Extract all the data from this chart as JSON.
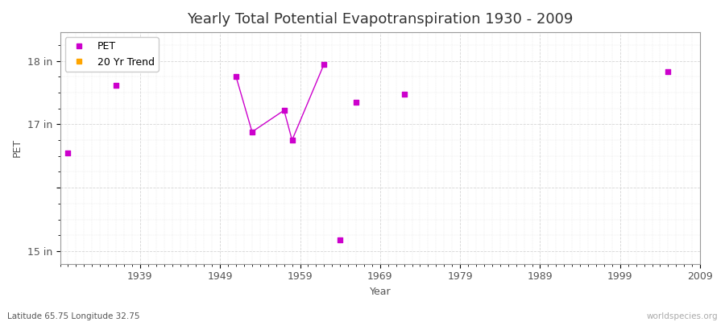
{
  "title": "Yearly Total Potential Evapotranspiration 1930 - 2009",
  "xlabel": "Year",
  "ylabel": "PET",
  "subtitle": "Latitude 65.75 Longitude 32.75",
  "watermark": "worldspecies.org",
  "xmin": 1929,
  "xmax": 2009,
  "ymin": 14.8,
  "ymax": 18.45,
  "yticks": [
    15,
    16,
    17,
    18
  ],
  "ytick_labels": [
    "15 in",
    "",
    "17 in",
    "18 in"
  ],
  "xticks": [
    1939,
    1949,
    1959,
    1969,
    1979,
    1989,
    1999,
    2009
  ],
  "background_color": "#ffffff",
  "fig_color": "#ffffff",
  "grid_color": "#cccccc",
  "line_color": "#cc00cc",
  "pet_color": "#cc00cc",
  "trend_color": "#ffa500",
  "isolated_points": [
    [
      1930,
      16.55
    ],
    [
      1936,
      17.62
    ],
    [
      1966,
      17.35
    ],
    [
      1972,
      17.47
    ],
    [
      2005,
      17.83
    ]
  ],
  "connected_series": [
    [
      1951,
      17.75
    ],
    [
      1953,
      16.88
    ],
    [
      1957,
      17.22
    ],
    [
      1958,
      16.75
    ],
    [
      1962,
      17.95
    ]
  ],
  "outlier": [
    1964,
    15.18
  ],
  "title_fontsize": 13,
  "axis_label_fontsize": 9,
  "tick_fontsize": 9,
  "legend_fontsize": 9
}
